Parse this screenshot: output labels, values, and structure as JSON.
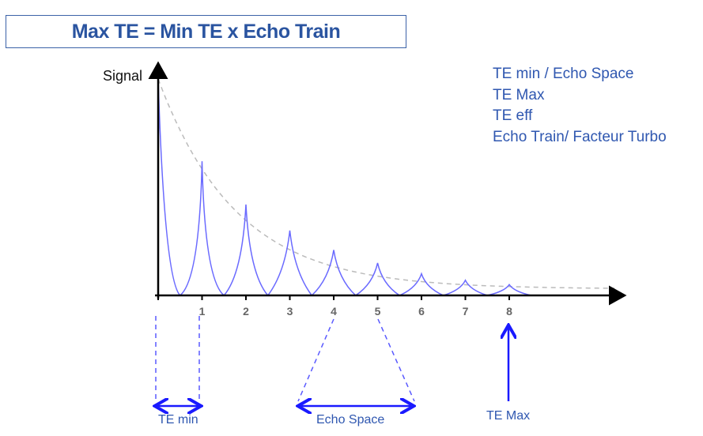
{
  "title": "Max TE = Min TE x Echo Train",
  "legend": [
    "TE min / Echo Space",
    "TE Max",
    "TE eff",
    "Echo Train/ Facteur Turbo"
  ],
  "chart_data": {
    "type": "line",
    "ylabel": "Signal",
    "x_ticks": [
      "1",
      "2",
      "3",
      "4",
      "5",
      "6",
      "7",
      "8"
    ],
    "echo_peaks": [
      1.0,
      0.62,
      0.42,
      0.3,
      0.21,
      0.15,
      0.1,
      0.07,
      0.05
    ],
    "decay_envelope": "dashed gray exponential"
  },
  "annotations": {
    "te_min": "TE min",
    "echo_space": "Echo Space",
    "te_max": "TE Max"
  },
  "colors": {
    "title": "#2a54a0",
    "signal": "#6a6aff",
    "arrow": "#1a1aff",
    "envelope": "#bbbbbb"
  }
}
